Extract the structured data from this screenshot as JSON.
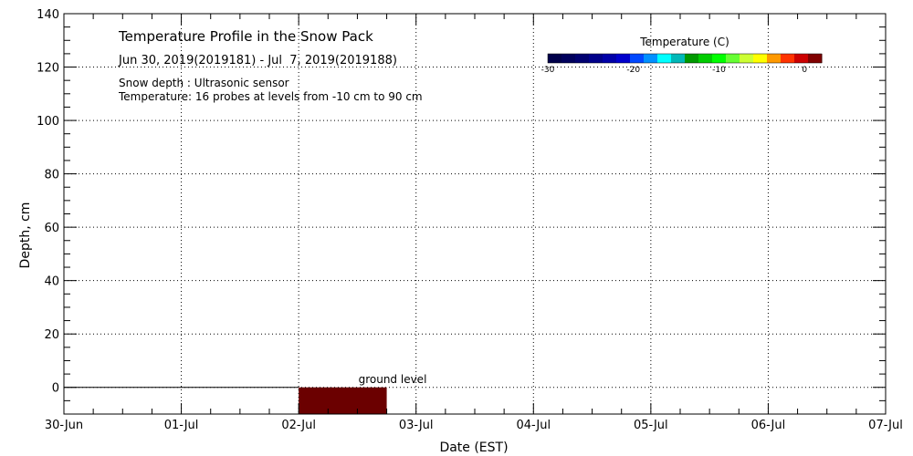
{
  "chart_data": {
    "type": "heatmap",
    "title": "Temperature Profile in the Snow Pack",
    "subtitle": "Jun 30, 2019(2019181) - Jul  7, 2019(2019188)",
    "notes": [
      "Snow depth : Ultrasonic sensor",
      "Temperature: 16 probes at levels from -10 cm to 90 cm"
    ],
    "xlabel": "Date (EST)",
    "ylabel": "Depth, cm",
    "x_ticks": [
      "30-Jun",
      "01-Jul",
      "02-Jul",
      "03-Jul",
      "04-Jul",
      "05-Jul",
      "06-Jul",
      "07-Jul"
    ],
    "x_range_days": [
      0,
      7
    ],
    "ylim": [
      -10,
      140
    ],
    "y_ticks": [
      0,
      20,
      40,
      60,
      80,
      100,
      120,
      140
    ],
    "grid": true,
    "ground_line": {
      "y": 0,
      "x_start": 0,
      "x_end": 2
    },
    "ground_label": "ground level",
    "temperature_cells": [
      {
        "x_start": 2.0,
        "x_end": 2.75,
        "y_top": 0,
        "y_bottom": -10,
        "color": "#6b0000"
      }
    ],
    "colorbar": {
      "title": "Temperature (C)",
      "ticks": [
        -30,
        -20,
        -10,
        0
      ],
      "range": [
        -30,
        2
      ],
      "placement": "top-right",
      "colors": [
        "#00004a",
        "#00005c",
        "#000070",
        "#00008a",
        "#0000a8",
        "#0000cc",
        "#0048ff",
        "#0090ff",
        "#00ffff",
        "#00b8b8",
        "#009900",
        "#00cc00",
        "#00ff00",
        "#66ff33",
        "#ccff33",
        "#ffff00",
        "#ff9900",
        "#ff3300",
        "#cc0000",
        "#800000"
      ]
    }
  }
}
